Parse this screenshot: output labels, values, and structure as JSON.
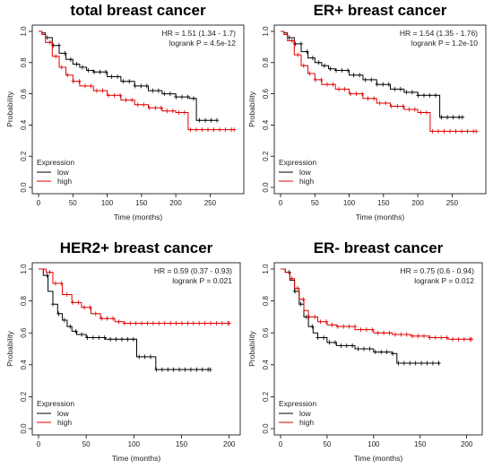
{
  "chart_data": [
    {
      "type": "line",
      "title": "total breast cancer",
      "xlabel": "Time (months)",
      "ylabel": "Probability",
      "xlim": [
        0,
        290
      ],
      "ylim": [
        0,
        1.0
      ],
      "xticks": [
        "0",
        "50",
        "100",
        "150",
        "200",
        "250"
      ],
      "yticks": [
        "0.0",
        "0.2",
        "0.4",
        "0.6",
        "0.8",
        "1.0"
      ],
      "stats": {
        "hr": "HR = 1.51 (1.34 - 1.7)",
        "logrank": "logrank P = 4.5e-12"
      },
      "legend": {
        "title": "Expression",
        "position": "bottom-left"
      },
      "series": [
        {
          "name": "low",
          "color": "#000000",
          "points": [
            [
              0,
              1.0
            ],
            [
              5,
              0.99
            ],
            [
              10,
              0.96
            ],
            [
              20,
              0.91
            ],
            [
              30,
              0.86
            ],
            [
              40,
              0.82
            ],
            [
              50,
              0.79
            ],
            [
              60,
              0.77
            ],
            [
              70,
              0.75
            ],
            [
              80,
              0.74
            ],
            [
              100,
              0.71
            ],
            [
              120,
              0.68
            ],
            [
              140,
              0.65
            ],
            [
              160,
              0.62
            ],
            [
              180,
              0.6
            ],
            [
              200,
              0.58
            ],
            [
              220,
              0.57
            ],
            [
              230,
              0.57
            ],
            [
              230,
              0.43
            ],
            [
              260,
              0.43
            ]
          ]
        },
        {
          "name": "high",
          "color": "#e00000",
          "points": [
            [
              0,
              1.0
            ],
            [
              5,
              0.98
            ],
            [
              10,
              0.93
            ],
            [
              20,
              0.84
            ],
            [
              30,
              0.77
            ],
            [
              40,
              0.72
            ],
            [
              50,
              0.68
            ],
            [
              60,
              0.65
            ],
            [
              80,
              0.62
            ],
            [
              100,
              0.59
            ],
            [
              120,
              0.56
            ],
            [
              140,
              0.53
            ],
            [
              160,
              0.51
            ],
            [
              180,
              0.49
            ],
            [
              200,
              0.48
            ],
            [
              218,
              0.48
            ],
            [
              218,
              0.37
            ],
            [
              285,
              0.37
            ]
          ]
        }
      ]
    },
    {
      "type": "line",
      "title": "ER+ breast cancer",
      "xlabel": "Time (months)",
      "ylabel": "Probability",
      "xlim": [
        0,
        290
      ],
      "ylim": [
        0,
        1.0
      ],
      "xticks": [
        "0",
        "50",
        "100",
        "150",
        "200",
        "250"
      ],
      "yticks": [
        "0.0",
        "0.2",
        "0.4",
        "0.6",
        "0.8",
        "1.0"
      ],
      "stats": {
        "hr": "HR = 1.54 (1.35 - 1.76)",
        "logrank": "logrank P = 1.2e-10"
      },
      "legend": {
        "title": "Expression",
        "position": "bottom-left"
      },
      "series": [
        {
          "name": "low",
          "color": "#000000",
          "points": [
            [
              0,
              1.0
            ],
            [
              5,
              0.99
            ],
            [
              10,
              0.96
            ],
            [
              20,
              0.92
            ],
            [
              30,
              0.87
            ],
            [
              40,
              0.83
            ],
            [
              50,
              0.8
            ],
            [
              60,
              0.78
            ],
            [
              70,
              0.76
            ],
            [
              80,
              0.75
            ],
            [
              100,
              0.72
            ],
            [
              120,
              0.69
            ],
            [
              140,
              0.66
            ],
            [
              160,
              0.63
            ],
            [
              180,
              0.61
            ],
            [
              200,
              0.59
            ],
            [
              232,
              0.58
            ],
            [
              232,
              0.45
            ],
            [
              265,
              0.45
            ]
          ]
        },
        {
          "name": "high",
          "color": "#e00000",
          "points": [
            [
              0,
              1.0
            ],
            [
              5,
              0.98
            ],
            [
              10,
              0.94
            ],
            [
              20,
              0.85
            ],
            [
              30,
              0.78
            ],
            [
              40,
              0.73
            ],
            [
              50,
              0.69
            ],
            [
              60,
              0.66
            ],
            [
              80,
              0.63
            ],
            [
              100,
              0.6
            ],
            [
              120,
              0.57
            ],
            [
              140,
              0.54
            ],
            [
              160,
              0.52
            ],
            [
              180,
              0.5
            ],
            [
              200,
              0.48
            ],
            [
              218,
              0.48
            ],
            [
              218,
              0.36
            ],
            [
              285,
              0.36
            ]
          ]
        }
      ]
    },
    {
      "type": "line",
      "title": "HER2+ breast cancer",
      "xlabel": "Time (months)",
      "ylabel": "Probability",
      "xlim": [
        0,
        205
      ],
      "ylim": [
        0,
        1.0
      ],
      "xticks": [
        "0",
        "50",
        "100",
        "150",
        "200"
      ],
      "yticks": [
        "0.0",
        "0.2",
        "0.4",
        "0.6",
        "0.8",
        "1.0"
      ],
      "stats": {
        "hr": "HR = 0.59 (0.37 - 0.93)",
        "logrank": "logrank P = 0.021"
      },
      "legend": {
        "title": "Expression",
        "position": "bottom-left"
      },
      "series": [
        {
          "name": "low",
          "color": "#000000",
          "points": [
            [
              0,
              1.0
            ],
            [
              5,
              0.96
            ],
            [
              10,
              0.86
            ],
            [
              15,
              0.78
            ],
            [
              20,
              0.72
            ],
            [
              25,
              0.68
            ],
            [
              30,
              0.64
            ],
            [
              35,
              0.61
            ],
            [
              40,
              0.59
            ],
            [
              50,
              0.57
            ],
            [
              70,
              0.56
            ],
            [
              90,
              0.56
            ],
            [
              103,
              0.56
            ],
            [
              103,
              0.45
            ],
            [
              123,
              0.45
            ],
            [
              123,
              0.37
            ],
            [
              180,
              0.37
            ]
          ]
        },
        {
          "name": "high",
          "color": "#e00000",
          "points": [
            [
              0,
              1.0
            ],
            [
              8,
              0.98
            ],
            [
              15,
              0.91
            ],
            [
              25,
              0.84
            ],
            [
              35,
              0.79
            ],
            [
              45,
              0.76
            ],
            [
              55,
              0.72
            ],
            [
              65,
              0.69
            ],
            [
              80,
              0.67
            ],
            [
              90,
              0.66
            ],
            [
              100,
              0.66
            ],
            [
              130,
              0.66
            ],
            [
              150,
              0.66
            ],
            [
              170,
              0.66
            ],
            [
              200,
              0.66
            ]
          ]
        }
      ]
    },
    {
      "type": "line",
      "title": "ER- breast cancer",
      "xlabel": "Time (months)",
      "ylabel": "Probability",
      "xlim": [
        0,
        210
      ],
      "ylim": [
        0,
        1.0
      ],
      "xticks": [
        "0",
        "50",
        "100",
        "150",
        "200"
      ],
      "yticks": [
        "0.0",
        "0.2",
        "0.4",
        "0.6",
        "0.8",
        "1.0"
      ],
      "stats": {
        "hr": "HR = 0.75 (0.6 - 0.94)",
        "logrank": "logrank P = 0.012"
      },
      "legend": {
        "title": "Expression",
        "position": "bottom-left"
      },
      "series": [
        {
          "name": "low",
          "color": "#000000",
          "points": [
            [
              0,
              1.0
            ],
            [
              5,
              0.98
            ],
            [
              10,
              0.93
            ],
            [
              15,
              0.86
            ],
            [
              20,
              0.78
            ],
            [
              25,
              0.7
            ],
            [
              30,
              0.64
            ],
            [
              35,
              0.6
            ],
            [
              40,
              0.57
            ],
            [
              50,
              0.54
            ],
            [
              60,
              0.52
            ],
            [
              80,
              0.5
            ],
            [
              100,
              0.48
            ],
            [
              120,
              0.47
            ],
            [
              125,
              0.47
            ],
            [
              125,
              0.41
            ],
            [
              170,
              0.41
            ]
          ]
        },
        {
          "name": "high",
          "color": "#e00000",
          "points": [
            [
              0,
              1.0
            ],
            [
              5,
              0.98
            ],
            [
              10,
              0.94
            ],
            [
              15,
              0.88
            ],
            [
              20,
              0.81
            ],
            [
              25,
              0.74
            ],
            [
              30,
              0.7
            ],
            [
              40,
              0.67
            ],
            [
              50,
              0.65
            ],
            [
              60,
              0.64
            ],
            [
              80,
              0.62
            ],
            [
              100,
              0.6
            ],
            [
              120,
              0.59
            ],
            [
              140,
              0.58
            ],
            [
              160,
              0.57
            ],
            [
              180,
              0.56
            ],
            [
              205,
              0.56
            ]
          ]
        }
      ]
    }
  ]
}
